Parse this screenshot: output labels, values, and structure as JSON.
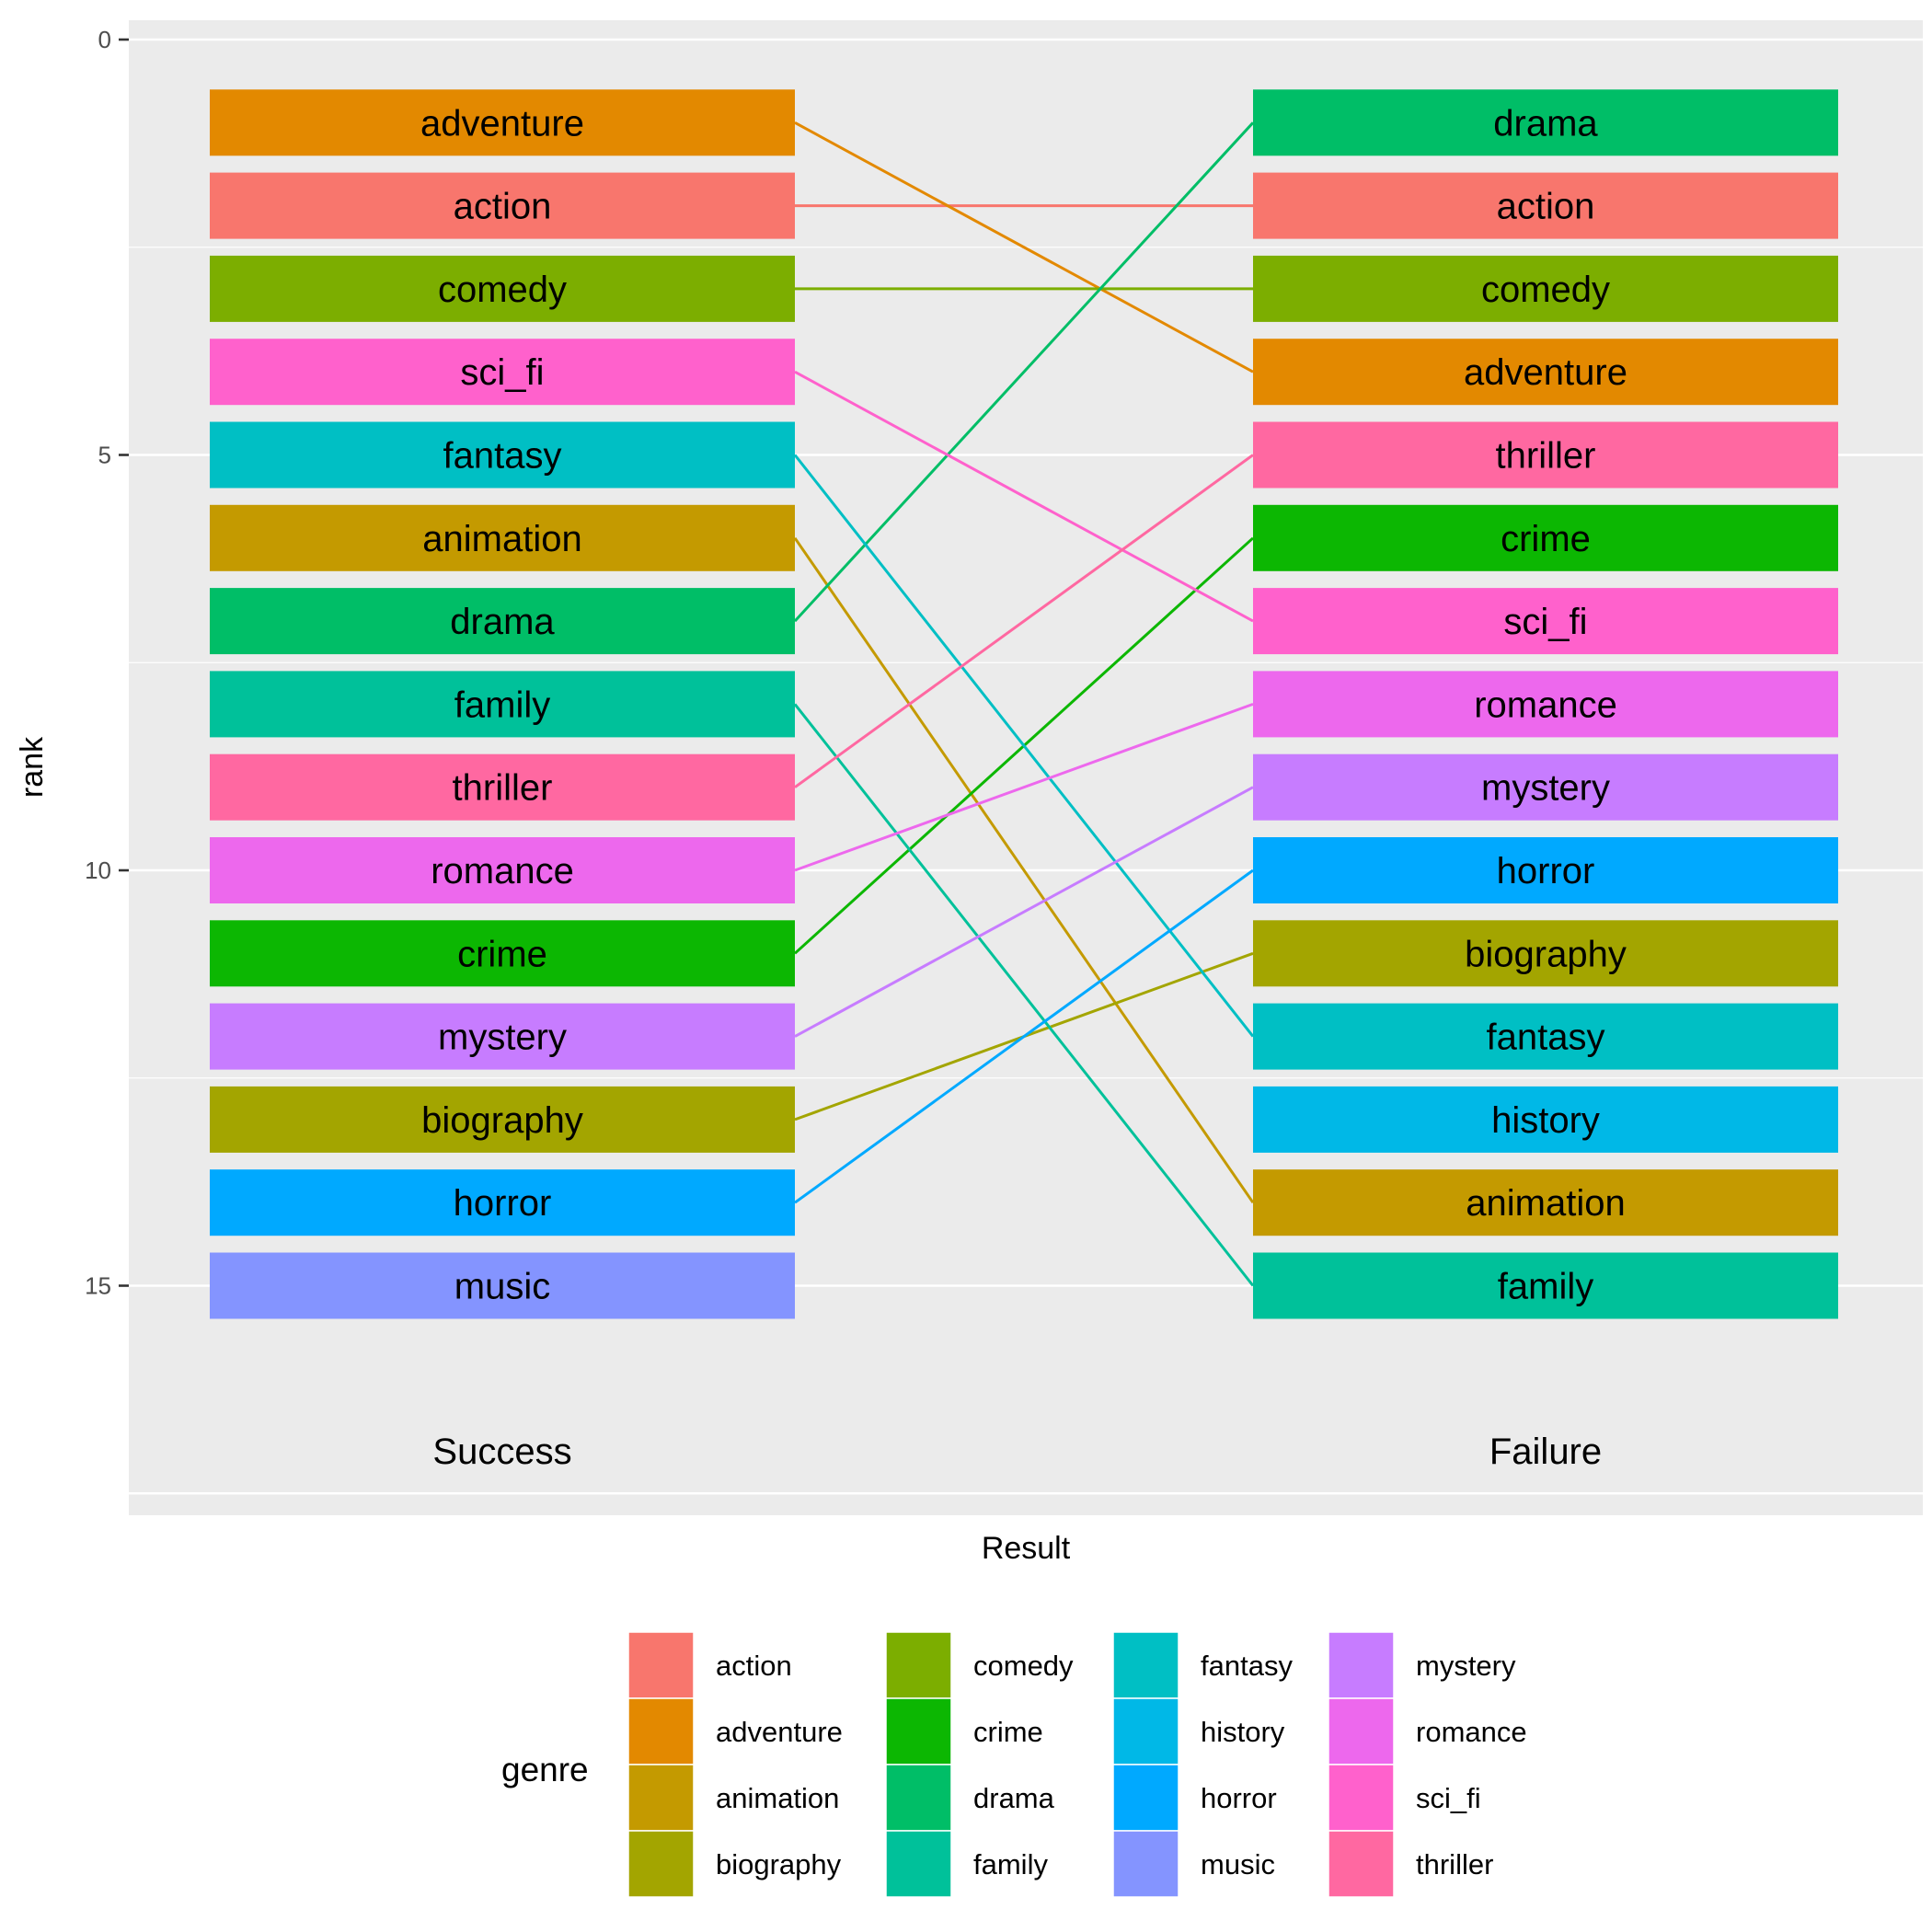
{
  "chart_data": {
    "type": "bump",
    "xlabel": "Result",
    "ylabel": "rank",
    "ylim": [
      0,
      17.5
    ],
    "y_reversed": true,
    "y_ticks": [
      0,
      5,
      10,
      15
    ],
    "columns": [
      "Success",
      "Failure"
    ],
    "series": [
      {
        "name": "action",
        "color": "#F8766D",
        "Success": 2,
        "Failure": 2
      },
      {
        "name": "adventure",
        "color": "#E38900",
        "Success": 1,
        "Failure": 4
      },
      {
        "name": "animation",
        "color": "#C49A00",
        "Success": 6,
        "Failure": 14
      },
      {
        "name": "biography",
        "color": "#A3A500",
        "Success": 13,
        "Failure": 11
      },
      {
        "name": "comedy",
        "color": "#7CAE00",
        "Success": 3,
        "Failure": 3
      },
      {
        "name": "crime",
        "color": "#0CB702",
        "Success": 11,
        "Failure": 6
      },
      {
        "name": "drama",
        "color": "#00BE67",
        "Success": 7,
        "Failure": 1
      },
      {
        "name": "family",
        "color": "#00C19A",
        "Success": 8,
        "Failure": 15
      },
      {
        "name": "fantasy",
        "color": "#00BFC4",
        "Success": 5,
        "Failure": 12
      },
      {
        "name": "history",
        "color": "#00B8E7",
        "Success": null,
        "Failure": 13
      },
      {
        "name": "horror",
        "color": "#00A9FF",
        "Success": 14,
        "Failure": 10
      },
      {
        "name": "music",
        "color": "#8494FF",
        "Success": 15,
        "Failure": null
      },
      {
        "name": "mystery",
        "color": "#C77CFF",
        "Success": 12,
        "Failure": 9
      },
      {
        "name": "romance",
        "color": "#ED68ED",
        "Success": 10,
        "Failure": 8
      },
      {
        "name": "sci_fi",
        "color": "#FF61CC",
        "Success": 4,
        "Failure": 7
      },
      {
        "name": "thriller",
        "color": "#FF68A1",
        "Success": 9,
        "Failure": 5
      }
    ],
    "legend": {
      "title": "genre",
      "position": "bottom",
      "columns": [
        [
          "action",
          "adventure",
          "animation",
          "biography"
        ],
        [
          "comedy",
          "crime",
          "drama",
          "family"
        ],
        [
          "fantasy",
          "history",
          "horror",
          "music"
        ],
        [
          "mystery",
          "romance",
          "sci_fi",
          "thriller"
        ]
      ]
    },
    "grid": true,
    "background": "#EBEBEB"
  }
}
